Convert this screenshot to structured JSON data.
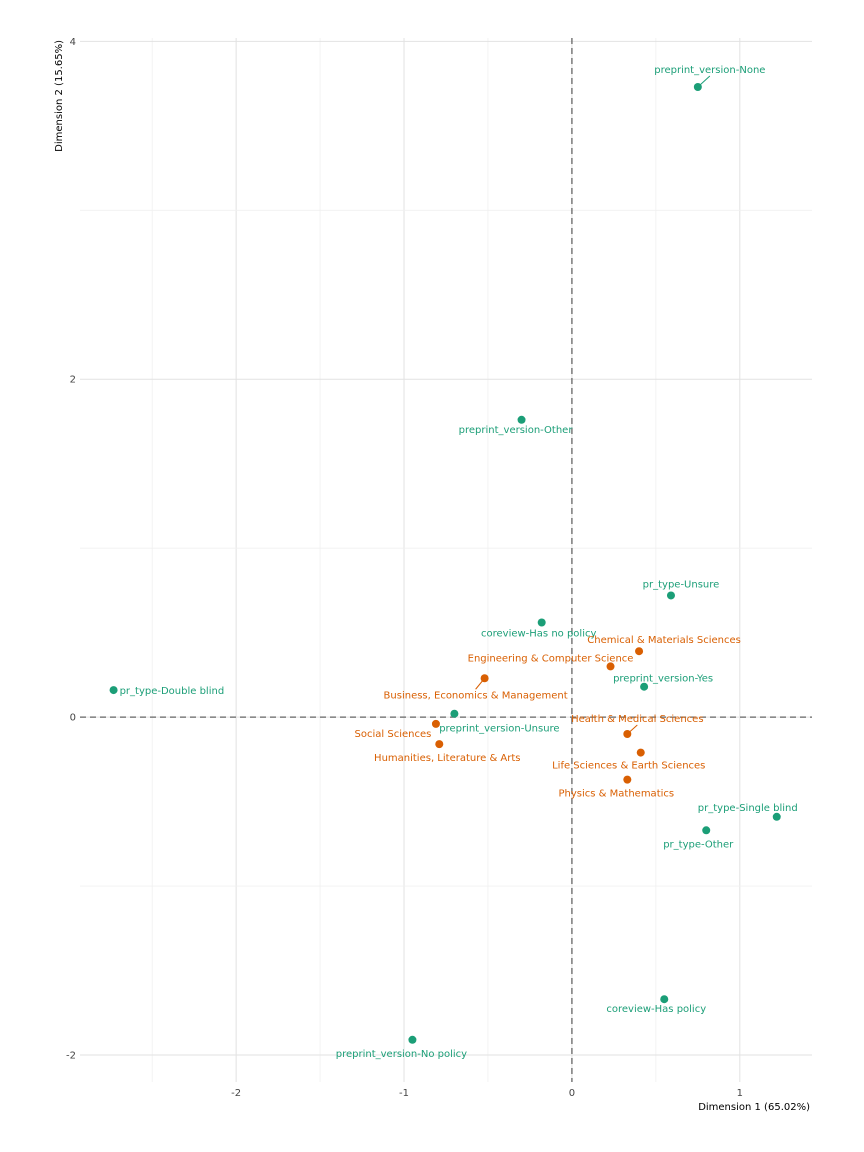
{
  "chart_data": {
    "type": "scatter",
    "title": "",
    "xlabel": "Dimension 1 (65.02%)",
    "ylabel": "Dimension 2 (15.65%)",
    "xlim": [
      -2.93,
      1.43
    ],
    "ylim": [
      -2.16,
      4.02
    ],
    "xticks": [
      -2,
      -1,
      0,
      1
    ],
    "yticks": [
      -2,
      0,
      2,
      4
    ],
    "x_tick_labels": [
      "-2",
      "-1",
      "0",
      "1"
    ],
    "y_tick_labels": [
      "-2",
      "0",
      "2",
      "4"
    ],
    "grid": true,
    "reference_lines": {
      "x": 0,
      "y": 0,
      "style": "dashed"
    },
    "colors": {
      "variables": "#1b9e77",
      "fields": "#d95f02",
      "grid": "#e5e5e5",
      "reference": "#666666"
    },
    "series": [
      {
        "color": "#1b9e77",
        "points": [
          {
            "label": "preprint_version-None",
            "x": 0.75,
            "y": 3.73
          },
          {
            "label": "preprint_version-Other",
            "x": -0.3,
            "y": 1.76
          },
          {
            "label": "pr_type-Unsure",
            "x": 0.59,
            "y": 0.72
          },
          {
            "label": "coreview-Has no policy",
            "x": -0.18,
            "y": 0.56
          },
          {
            "label": "pr_type-Double blind",
            "x": -2.73,
            "y": 0.16
          },
          {
            "label": "preprint_version-Yes",
            "x": 0.43,
            "y": 0.18
          },
          {
            "label": "preprint_version-Unsure",
            "x": -0.7,
            "y": 0.02
          },
          {
            "label": "pr_type-Single blind",
            "x": 1.22,
            "y": -0.59
          },
          {
            "label": "pr_type-Other",
            "x": 0.8,
            "y": -0.67
          },
          {
            "label": "coreview-Has policy",
            "x": 0.55,
            "y": -1.67
          },
          {
            "label": "preprint_version-No policy",
            "x": -0.95,
            "y": -1.91
          }
        ]
      },
      {
        "color": "#d95f02",
        "points": [
          {
            "label": "Chemical & Materials Sciences",
            "x": 0.4,
            "y": 0.39
          },
          {
            "label": "Engineering & Computer Science",
            "x": 0.23,
            "y": 0.3
          },
          {
            "label": "Business, Economics & Management",
            "x": -0.52,
            "y": 0.23
          },
          {
            "label": "Social Sciences",
            "x": -0.81,
            "y": -0.04
          },
          {
            "label": "Health & Medical Sciences",
            "x": 0.33,
            "y": -0.1
          },
          {
            "label": "Humanities, Literature & Arts",
            "x": -0.79,
            "y": -0.16
          },
          {
            "label": "Life Sciences & Earth Sciences",
            "x": 0.41,
            "y": -0.21
          },
          {
            "label": "Physics & Mathematics",
            "x": 0.33,
            "y": -0.37
          }
        ]
      }
    ]
  }
}
